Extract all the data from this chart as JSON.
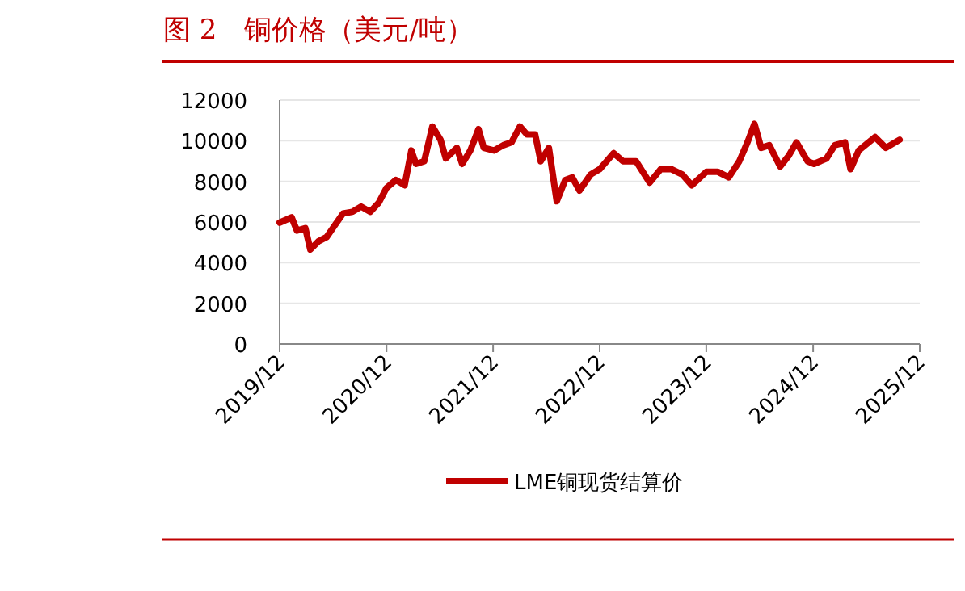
{
  "chart_data": {
    "type": "line",
    "title": "图 2　铜价格（美元/吨）",
    "x": [
      "2019-12-01",
      "2020-01-11",
      "2020-01-29",
      "2020-02-27",
      "2020-03-15",
      "2020-04-12",
      "2020-05-10",
      "2020-06-07",
      "2020-07-05",
      "2020-08-06",
      "2020-09-05",
      "2020-10-06",
      "2020-11-04",
      "2020-12-01",
      "2021-01-02",
      "2021-02-01",
      "2021-02-24",
      "2021-03-12",
      "2021-04-09",
      "2021-05-07",
      "2021-06-04",
      "2021-06-22",
      "2021-07-30",
      "2021-08-17",
      "2021-09-14",
      "2021-10-12",
      "2021-10-30",
      "2021-12-04",
      "2022-01-05",
      "2022-02-02",
      "2022-03-03",
      "2022-03-27",
      "2022-04-24",
      "2022-05-13",
      "2022-06-10",
      "2022-07-07",
      "2022-08-05",
      "2022-08-29",
      "2022-09-23",
      "2022-10-31",
      "2022-12-01",
      "2023-01-18",
      "2023-02-19",
      "2023-04-05",
      "2023-05-21",
      "2023-06-28",
      "2023-08-04",
      "2023-09-10",
      "2023-10-12",
      "2023-12-01",
      "2024-01-10",
      "2024-02-16",
      "2024-03-23",
      "2024-04-20",
      "2024-05-14",
      "2024-06-06",
      "2024-07-04",
      "2024-08-10",
      "2024-09-08",
      "2024-10-05",
      "2024-11-12",
      "2024-12-04",
      "2025-01-16",
      "2025-02-13",
      "2025-03-20",
      "2025-04-08",
      "2025-05-06",
      "2025-07-01",
      "2025-08-07",
      "2025-09-23"
    ],
    "series": [
      {
        "name": "LME铜现货结算价",
        "color": "#c00000",
        "values": [
          5970,
          6230,
          5580,
          5700,
          4650,
          5050,
          5260,
          5840,
          6420,
          6500,
          6760,
          6500,
          6940,
          7680,
          8070,
          7810,
          9520,
          8860,
          8990,
          10700,
          10050,
          9130,
          9650,
          8860,
          9520,
          10570,
          9650,
          9520,
          9780,
          9920,
          10700,
          10310,
          10310,
          8990,
          9650,
          7020,
          8070,
          8200,
          7550,
          8340,
          8600,
          9390,
          8990,
          8990,
          7940,
          8600,
          8600,
          8340,
          7810,
          8470,
          8470,
          8200,
          8990,
          9920,
          10830,
          9650,
          9780,
          8730,
          9260,
          9920,
          8990,
          8860,
          9130,
          9780,
          9920,
          8600,
          9520,
          10180,
          9650,
          10050
        ]
      }
    ],
    "xlim": [
      "2019-12",
      "2025-12"
    ],
    "xticks": [
      {
        "value": "2019-12",
        "label": "2019/12"
      },
      {
        "value": "2020-12",
        "label": "2020/12"
      },
      {
        "value": "2021-12",
        "label": "2021/12"
      },
      {
        "value": "2022-12",
        "label": "2022/12"
      },
      {
        "value": "2023-12",
        "label": "2023/12"
      },
      {
        "value": "2024-12",
        "label": "2024/12"
      },
      {
        "value": "2025-12",
        "label": "2025/12"
      }
    ],
    "ylim": [
      0,
      12000
    ],
    "yticks": [
      0,
      2000,
      4000,
      6000,
      8000,
      10000,
      12000
    ],
    "grid": "y",
    "legend": "bottom",
    "marker": "none",
    "line_style": "solid"
  }
}
